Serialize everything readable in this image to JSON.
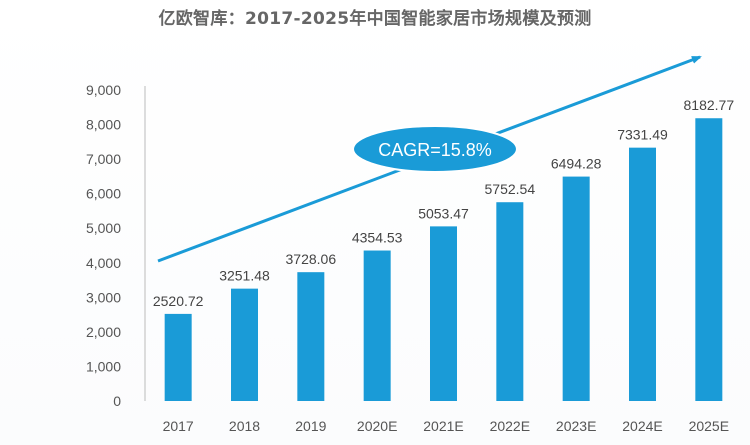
{
  "chart_data": {
    "type": "bar",
    "title": "亿欧智库：2017-2025年中国智能家居市场规模及预测",
    "categories": [
      "2017",
      "2018",
      "2019",
      "2020E",
      "2021E",
      "2022E",
      "2023E",
      "2024E",
      "2025E"
    ],
    "values": [
      2520.72,
      3251.48,
      3728.06,
      4354.53,
      5053.47,
      5752.54,
      6494.28,
      7331.49,
      8182.77
    ],
    "value_labels": [
      "2520.72",
      "3251.48",
      "3728.06",
      "4354.53",
      "5053.47",
      "5752.54",
      "6494.28",
      "7331.49",
      "8182.77"
    ],
    "ylim": [
      0,
      9000
    ],
    "yticks": [
      0,
      1000,
      2000,
      3000,
      4000,
      5000,
      6000,
      7000,
      8000,
      9000
    ],
    "ytick_labels": [
      "0",
      "1,000",
      "2,000",
      "3,000",
      "4,000",
      "5,000",
      "6,000",
      "7,000",
      "8,000",
      "9,000"
    ],
    "xlabel": "",
    "ylabel": "",
    "grid": false,
    "annotation": "CAGR=15.8%",
    "colors": {
      "bar": "#1a9bd7",
      "arrow": "#1a9bd7",
      "badge": "#1a9bd7",
      "axis": "#bbbbbb"
    }
  }
}
